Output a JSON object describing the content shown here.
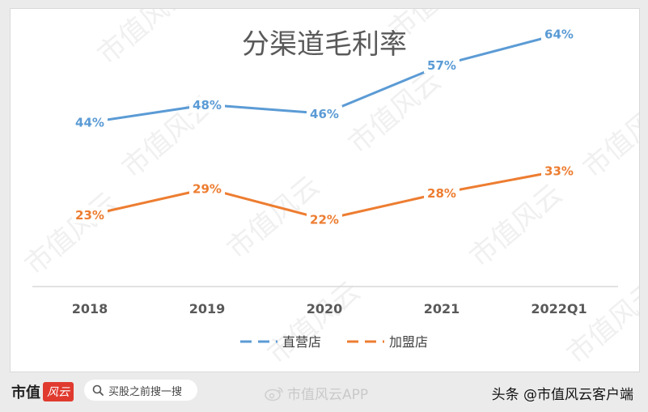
{
  "chart_data": {
    "type": "line",
    "title": "分渠道毛利率",
    "categories": [
      "2018",
      "2019",
      "2020",
      "2021",
      "2022Q1"
    ],
    "series": [
      {
        "name": "直营店",
        "values": [
          44,
          48,
          46,
          57,
          64
        ],
        "labels": [
          "44%",
          "48%",
          "46%",
          "57%",
          "64%"
        ],
        "color": "#5b9bd5"
      },
      {
        "name": "加盟店",
        "values": [
          23,
          29,
          22,
          28,
          33
        ],
        "labels": [
          "23%",
          "29%",
          "22%",
          "28%",
          "33%"
        ],
        "color": "#ed7d31"
      }
    ],
    "xlabel": "",
    "ylabel": "",
    "ylim": [
      0,
      80
    ],
    "grid": false,
    "legend": "bottom"
  },
  "watermark": "市值风云",
  "footer": {
    "brand_text": "市值",
    "brand_badge": "风云",
    "search_placeholder": "买股之前搜一搜",
    "app_label": "市值风云APP",
    "credit": "头条 @市值风云客户端"
  },
  "icons": {
    "search": "search-icon",
    "weibo": "weibo-icon"
  }
}
